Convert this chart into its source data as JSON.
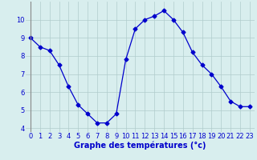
{
  "x": [
    0,
    1,
    2,
    3,
    4,
    5,
    6,
    7,
    8,
    9,
    10,
    11,
    12,
    13,
    14,
    15,
    16,
    17,
    18,
    19,
    20,
    21,
    22,
    23
  ],
  "y": [
    9.0,
    8.5,
    8.3,
    7.5,
    6.3,
    5.3,
    4.8,
    4.3,
    4.3,
    4.8,
    7.8,
    9.5,
    10.0,
    10.2,
    10.5,
    10.0,
    9.3,
    8.2,
    7.5,
    7.0,
    6.3,
    5.5,
    5.2,
    5.2
  ],
  "line_color": "#0000cc",
  "marker": "D",
  "marker_size": 2.5,
  "bg_color": "#d8eeee",
  "grid_color": "#b0cccc",
  "xlabel": "Graphe des températures (°c)",
  "xlabel_color": "#0000cc",
  "xlabel_fontsize": 7,
  "tick_color": "#0000cc",
  "tick_fontsize": 6,
  "ylim": [
    3.8,
    11.0
  ],
  "xlim": [
    -0.5,
    23.5
  ],
  "yticks": [
    4,
    5,
    6,
    7,
    8,
    9,
    10
  ],
  "xticks": [
    0,
    1,
    2,
    3,
    4,
    5,
    6,
    7,
    8,
    9,
    10,
    11,
    12,
    13,
    14,
    15,
    16,
    17,
    18,
    19,
    20,
    21,
    22,
    23
  ]
}
